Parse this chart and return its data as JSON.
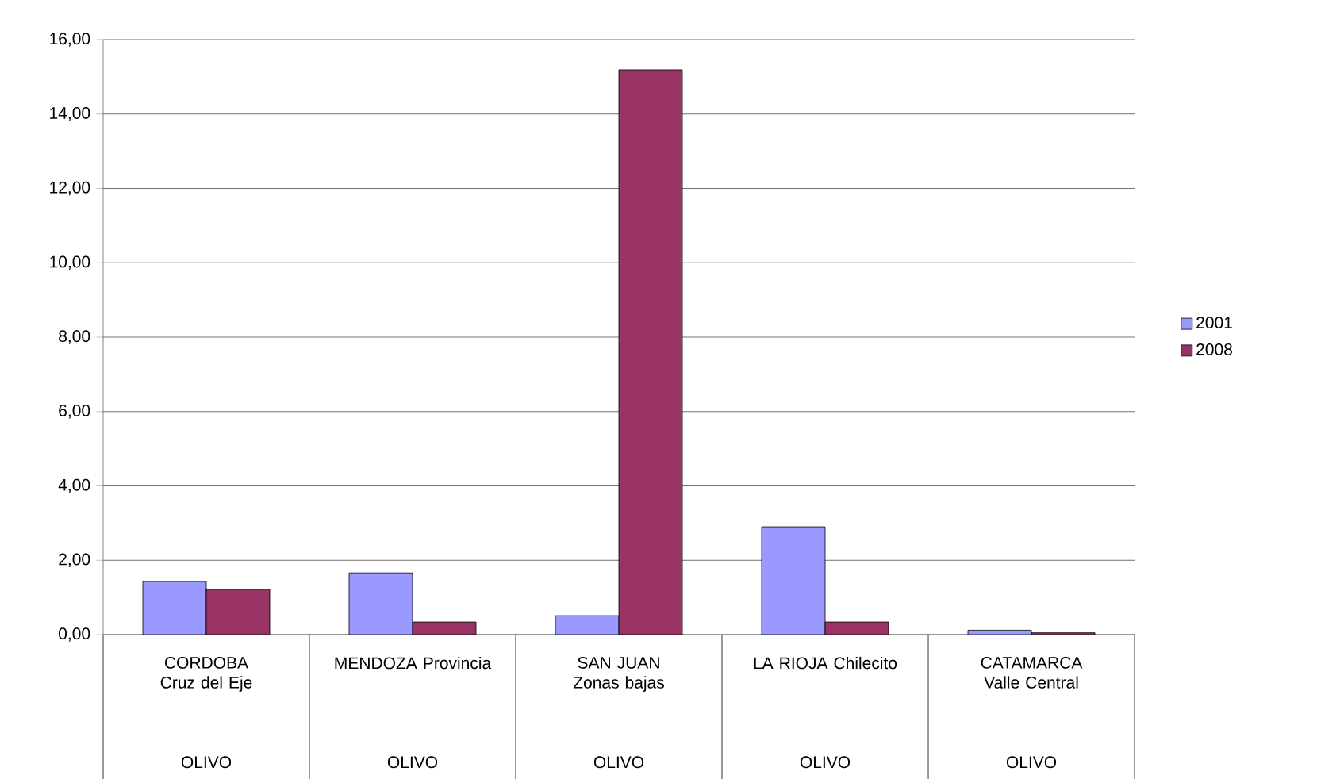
{
  "chart_data": {
    "type": "bar",
    "categories": [
      "CORDOBA Cruz del Eje",
      "MENDOZA Provincia",
      "SAN JUAN Zonas bajas",
      "LA RIOJA Chilecito",
      "CATAMARCA Valle Central"
    ],
    "series": [
      {
        "name": "2001",
        "color": "#9999ff",
        "values": [
          1.43,
          1.66,
          0.51,
          2.9,
          0.12
        ]
      },
      {
        "name": "2008",
        "color": "#993366",
        "values": [
          1.22,
          0.34,
          15.19,
          0.34,
          0.05
        ]
      }
    ],
    "annotations": [
      "OLIVO",
      "OLIVO",
      "OLIVO",
      "OLIVO",
      "OLIVO"
    ],
    "ylim": [
      0,
      16
    ],
    "yticks": [
      {
        "value": 0,
        "label": "0,00"
      },
      {
        "value": 2,
        "label": "2,00"
      },
      {
        "value": 4,
        "label": "4,00"
      },
      {
        "value": 6,
        "label": "6,00"
      },
      {
        "value": 8,
        "label": "8,00"
      },
      {
        "value": 10,
        "label": "10,00"
      },
      {
        "value": 12,
        "label": "12,00"
      },
      {
        "value": 14,
        "label": "14,00"
      },
      {
        "value": 16,
        "label": "16,00"
      }
    ],
    "grid": "y",
    "legend": "right"
  }
}
